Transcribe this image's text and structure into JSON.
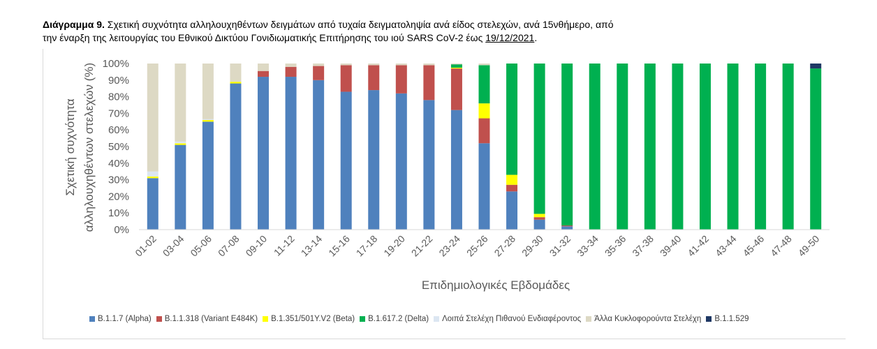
{
  "caption": {
    "label": "Διάγραμμα 9.",
    "text_line1": " Σχετική συχνότητα αλληλουχηθέντων δειγμάτων από τυχαία δειγματοληψία ανά είδος στελεχών, ανά 15νθήμερο, από",
    "text_line2": "την έναρξη της λειτουργίας του Εθνικού Δικτύου Γονιδιωματικής Επιτήρησης του ιού SARS CoV-2 έως ",
    "date": "19/12/2021",
    "end": "."
  },
  "chart_data": {
    "type": "bar",
    "stacked": true,
    "xlabel": "Επιδημιολογικές Εβδομάδες",
    "ylabel_line1": "Σχετική συχνότητα",
    "ylabel_line2": "αλληλουχηθέντων στελεχών (%)",
    "ylim": [
      0,
      100
    ],
    "yticks": [
      "0%",
      "10%",
      "20%",
      "30%",
      "40%",
      "50%",
      "60%",
      "70%",
      "80%",
      "90%",
      "100%"
    ],
    "grid": false,
    "legend_position": "bottom",
    "categories": [
      "01-02",
      "03-04",
      "05-06",
      "07-08",
      "09-10",
      "11-12",
      "13-14",
      "15-16",
      "17-18",
      "19-20",
      "21-22",
      "23-24",
      "25-26",
      "27-28",
      "29-30",
      "31-32",
      "33-34",
      "35-36",
      "37-38",
      "39-40",
      "41-42",
      "43-44",
      "45-46",
      "47-48",
      "49-50"
    ],
    "series": [
      {
        "name": "B.1.1.7 (Alpha)",
        "color": "#4f81bd",
        "values": [
          31,
          51,
          65,
          88,
          92,
          92,
          90,
          83,
          84,
          82,
          78,
          72,
          52,
          23,
          6,
          2,
          0,
          0,
          0,
          0,
          0,
          0,
          0,
          0,
          0
        ]
      },
      {
        "name": "B.1.1.318 (Variant E484K)",
        "color": "#c0504d",
        "values": [
          0,
          0,
          0,
          0,
          3.5,
          6,
          8.5,
          16,
          15,
          17,
          21,
          25,
          15,
          4,
          1.5,
          0.5,
          0,
          0,
          0,
          0,
          0,
          0,
          0,
          0,
          0
        ]
      },
      {
        "name": "B.1.351/501Y.V2 (Beta)",
        "color": "#ffff00",
        "values": [
          1,
          1,
          1,
          1,
          0,
          0,
          0,
          0,
          0,
          0,
          0,
          0.5,
          9,
          6,
          2,
          0,
          0,
          0,
          0,
          0,
          0,
          0,
          0,
          0,
          0
        ]
      },
      {
        "name": "B.1.617.2 (Delta)",
        "color": "#00b050",
        "values": [
          0,
          0,
          0,
          0,
          0,
          0,
          0,
          0,
          0,
          0,
          0,
          2,
          23,
          67,
          90.5,
          97.5,
          100,
          100,
          100,
          100,
          100,
          100,
          100,
          100,
          97
        ]
      },
      {
        "name": "Λοιπά Στελέχη Πιθανού Ενδιαφέροντος",
        "color": "#dce6f2",
        "values": [
          3,
          1,
          0.5,
          0,
          0,
          0,
          0,
          0,
          0,
          0,
          0,
          0,
          0,
          0,
          0,
          0,
          0,
          0,
          0,
          0,
          0,
          0,
          0,
          0,
          0
        ]
      },
      {
        "name": "Άλλα Κυκλοφορούντα Στελέχη",
        "color": "#ddd9c4",
        "values": [
          65,
          47,
          33.5,
          11,
          4.5,
          2,
          1.5,
          1,
          1,
          1,
          1,
          0.5,
          1,
          0,
          0,
          0,
          0,
          0,
          0,
          0,
          0,
          0,
          0,
          0,
          0
        ]
      },
      {
        "name": "B.1.1.529",
        "color": "#1f3864",
        "values": [
          0,
          0,
          0,
          0,
          0,
          0,
          0,
          0,
          0,
          0,
          0,
          0,
          0,
          0,
          0,
          0,
          0,
          0,
          0,
          0,
          0,
          0,
          0,
          0,
          3
        ]
      }
    ]
  }
}
